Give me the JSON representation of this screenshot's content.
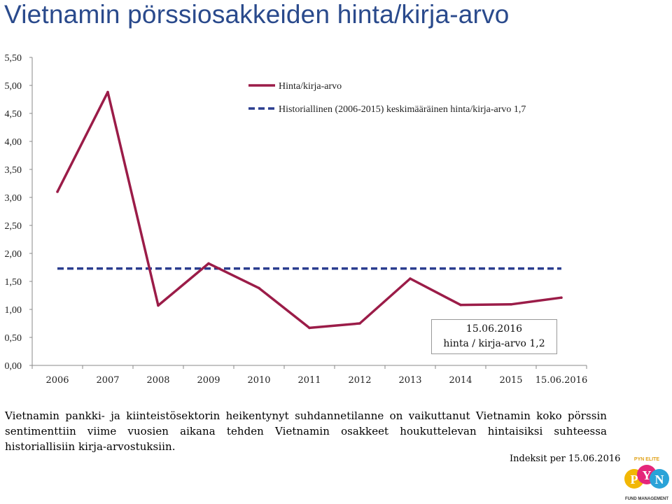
{
  "title": "Vietnamin pörssiosakkeiden hinta/kirja-arvo",
  "chart_data": {
    "type": "line",
    "title": "Vietnamin pörssiosakkeiden hinta/kirja-arvo",
    "categories": [
      "2006",
      "2007",
      "2008",
      "2009",
      "2010",
      "2011",
      "2012",
      "2013",
      "2014",
      "2015",
      "15.06.2016"
    ],
    "series": [
      {
        "name": "Hinta/kirja-arvo",
        "color": "#9b1c48",
        "style": "solid",
        "values": [
          3.1,
          4.88,
          1.07,
          1.82,
          1.38,
          0.67,
          0.75,
          1.55,
          1.08,
          1.09,
          1.21
        ]
      },
      {
        "name": "Historiallinen (2006-2015) keskimääräinen hinta/kirja-arvo 1,7",
        "color": "#2b3d8f",
        "style": "dashed",
        "values": [
          1.73,
          1.73,
          1.73,
          1.73,
          1.73,
          1.73,
          1.73,
          1.73,
          1.73,
          1.73,
          1.73
        ]
      }
    ],
    "yticks": [
      "0,00",
      "0,50",
      "1,00",
      "1,50",
      "2,00",
      "2,50",
      "3,00",
      "3,50",
      "4,00",
      "4,50",
      "5,00",
      "5,50"
    ],
    "ylim": [
      0,
      5.5
    ],
    "xlabel": "",
    "ylabel": "",
    "legend_position": "top-right",
    "annotation": {
      "line1": "15.06.2016",
      "line2": "hinta / kirja-arvo 1,2"
    }
  },
  "caption": "Vietnamin pankki- ja kiinteistösektorin heikentynyt suhdannetilanne on vaikuttanut Vietnamin koko pörssin sentimenttiin viime vuosien aikana tehden Vietnamin osakkeet houkuttelevan hintaisiksi suhteessa historiallisiin kirja-arvostuksiin.",
  "source": "Indeksit per 15.06.2016",
  "logo": {
    "top_text": "PYN ELITE",
    "letters": [
      "P",
      "Y",
      "N"
    ],
    "bottom_text": "FUND MANAGEMENT"
  }
}
